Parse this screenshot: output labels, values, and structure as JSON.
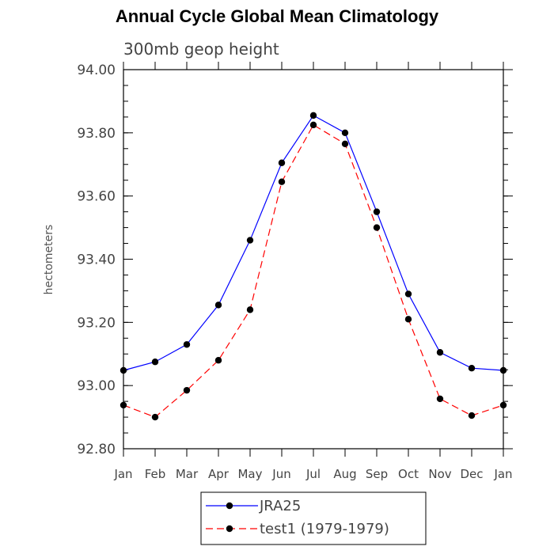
{
  "chart_data": {
    "type": "line",
    "title": "Annual Cycle Global Mean Climatology",
    "subtitle": "300mb geop height",
    "xlabel": "",
    "ylabel": "hectometers",
    "categories": [
      "Jan",
      "Feb",
      "Mar",
      "Apr",
      "May",
      "Jun",
      "Jul",
      "Aug",
      "Sep",
      "Oct",
      "Nov",
      "Dec",
      "Jan"
    ],
    "ylim": [
      92.8,
      94.0
    ],
    "yticks": [
      "92.80",
      "93.00",
      "93.20",
      "93.40",
      "93.60",
      "93.80",
      "94.00"
    ],
    "grid": false,
    "legend_position": "bottom",
    "series": [
      {
        "name": "JRA25",
        "color": "#0000ff",
        "dash": "solid",
        "values": [
          93.048,
          93.075,
          93.13,
          93.255,
          93.46,
          93.705,
          93.855,
          93.8,
          93.55,
          93.29,
          93.105,
          93.055,
          93.048
        ]
      },
      {
        "name": "test1 (1979-1979)",
        "color": "#ff0000",
        "dash": "dashed",
        "values": [
          92.938,
          92.9,
          92.985,
          93.08,
          93.24,
          93.645,
          93.825,
          93.765,
          93.5,
          93.21,
          92.958,
          92.905,
          92.938
        ]
      }
    ]
  }
}
